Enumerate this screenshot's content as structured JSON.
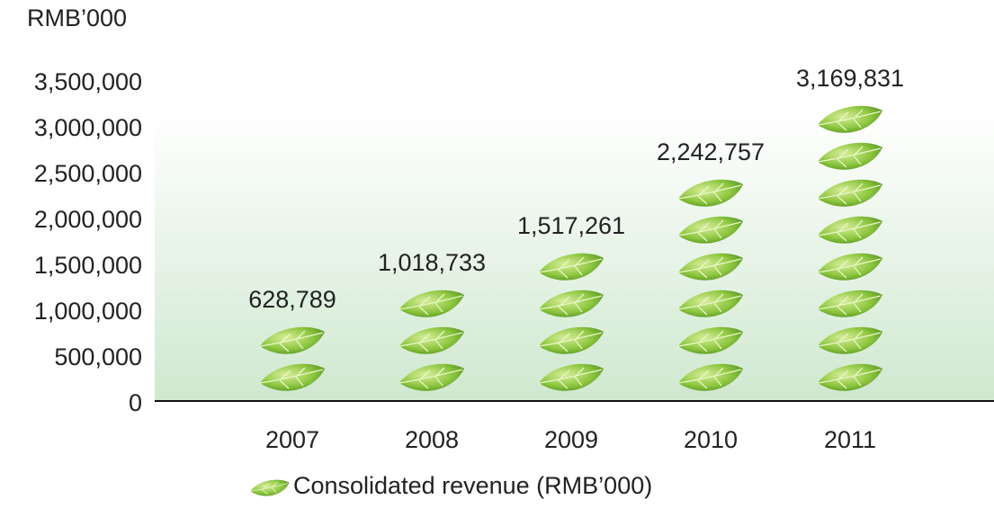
{
  "chart_data": {
    "type": "pictograph",
    "y_label": "RMB’000",
    "categories": [
      "2007",
      "2008",
      "2009",
      "2010",
      "2011"
    ],
    "series": [
      {
        "name": "Consolidated revenue (RMB’000)",
        "color": "#8dc63f",
        "values": [
          628789,
          1018733,
          1517261,
          2242757,
          3169831
        ],
        "value_labels": [
          "628,789",
          "1,018,733",
          "1,517,261",
          "2,242,757",
          "3,169,831"
        ]
      }
    ],
    "ylim": [
      0,
      3500000
    ],
    "yticks": [
      0,
      {
        "value": 500000,
        "label": "500,000"
      },
      {
        "value": 1000000,
        "label": "1,000,000"
      },
      {
        "value": 1500000,
        "label": "1,500,000"
      },
      {
        "value": 2000000,
        "label": "2,000,000"
      },
      {
        "value": 2500000,
        "label": "2,500,000"
      },
      {
        "value": 3000000,
        "label": "3,000,000"
      },
      {
        "value": 3500000,
        "label": "3,500,000"
      }
    ],
    "legend": "bottom"
  }
}
